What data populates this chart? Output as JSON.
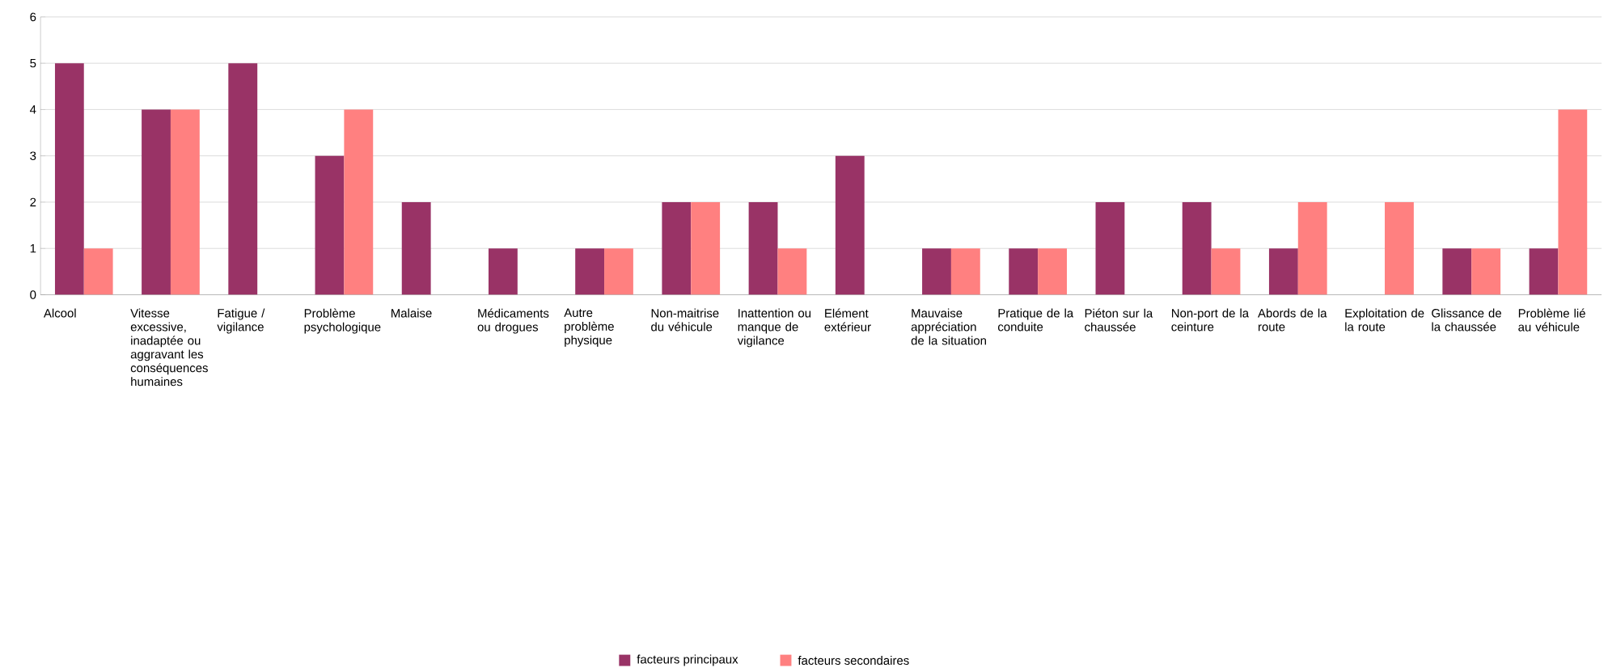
{
  "chart_data": {
    "type": "bar",
    "categories": [
      "Alcool",
      "Vitesse excessive, inadaptée ou aggravant les conséquences humaines",
      "Fatigue / vigilance",
      "Problème psychologique",
      "Malaise",
      "Médicaments ou drogues",
      "Autre problème physique",
      "Non-maitrise du véhicule",
      "Inattention ou manque de vigilance",
      "Elément extérieur",
      "Mauvaise appréciation de la situation",
      "Pratique de la conduite",
      "Piéton sur la chaussée",
      "Non-port de la ceinture",
      "Abords de la route",
      "Exploitation de la route",
      "Glissance de la chaussée",
      "Problème lié au véhicule"
    ],
    "series": [
      {
        "name": "facteurs principaux",
        "color": "#993366",
        "values": [
          5,
          4,
          5,
          3,
          2,
          1,
          1,
          2,
          2,
          3,
          1,
          1,
          2,
          2,
          1,
          0,
          1,
          1
        ]
      },
      {
        "name": "facteurs secondaires",
        "color": "#ff8080",
        "values": [
          1,
          4,
          0,
          4,
          0,
          0,
          1,
          2,
          1,
          0,
          1,
          1,
          0,
          1,
          2,
          2,
          1,
          4
        ]
      }
    ],
    "ylim": [
      0,
      6
    ],
    "yticks": [
      0,
      1,
      2,
      3,
      4,
      5,
      6
    ],
    "grid": "y",
    "legend": "bottom"
  }
}
